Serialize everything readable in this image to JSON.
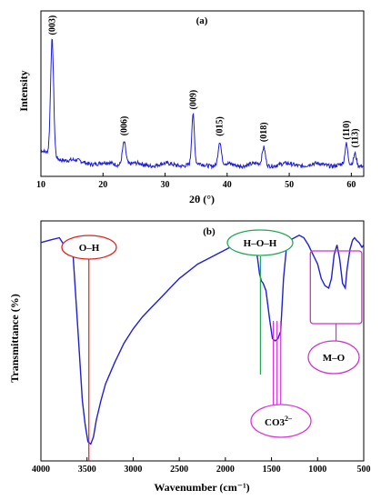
{
  "chart_data": [
    {
      "type": "line",
      "panel_label": "(a)",
      "xlabel": "2θ (°)",
      "ylabel": "Intensity",
      "xlim": [
        10,
        62
      ],
      "xticks": [
        10,
        20,
        30,
        40,
        50,
        60
      ],
      "grid": false,
      "legend": "none",
      "line_color": "#1f1fd6",
      "baseline": 0.12,
      "peaks": [
        {
          "label": "(003)",
          "x": 11.8,
          "y": 1.0,
          "width": 0.35
        },
        {
          "label": "(006)",
          "x": 23.4,
          "y": 0.2,
          "width": 0.4
        },
        {
          "label": "(009)",
          "x": 34.5,
          "y": 0.43,
          "width": 0.3
        },
        {
          "label": "(015)",
          "x": 38.8,
          "y": 0.2,
          "width": 0.35
        },
        {
          "label": "(018)",
          "x": 45.9,
          "y": 0.15,
          "width": 0.35
        },
        {
          "label": "(110)",
          "x": 59.2,
          "y": 0.17,
          "width": 0.3
        },
        {
          "label": "(113)",
          "x": 60.6,
          "y": 0.1,
          "width": 0.3
        }
      ]
    },
    {
      "type": "line",
      "panel_label": "(b)",
      "xlabel": "Wavenumber (cm⁻¹)",
      "ylabel": "Transmittance (%)",
      "xlim": [
        4000,
        500
      ],
      "xticks": [
        4000,
        3500,
        3000,
        2500,
        2000,
        1500,
        1000,
        500
      ],
      "grid": false,
      "legend": "none",
      "line_color": "#1f1fd6",
      "x": [
        4000,
        3900,
        3800,
        3750,
        3700,
        3650,
        3600,
        3550,
        3520,
        3490,
        3460,
        3430,
        3400,
        3350,
        3300,
        3200,
        3100,
        3000,
        2900,
        2800,
        2700,
        2600,
        2500,
        2400,
        2300,
        2200,
        2100,
        2000,
        1900,
        1800,
        1720,
        1680,
        1650,
        1630,
        1610,
        1590,
        1560,
        1520,
        1490,
        1460,
        1430,
        1400,
        1370,
        1340,
        1300,
        1250,
        1200,
        1150,
        1100,
        1050,
        1000,
        960,
        920,
        880,
        850,
        820,
        790,
        760,
        730,
        700,
        680,
        650,
        620,
        600,
        580,
        550,
        520,
        500
      ],
      "y": [
        0.91,
        0.92,
        0.93,
        0.9,
        0.91,
        0.85,
        0.55,
        0.25,
        0.15,
        0.08,
        0.07,
        0.1,
        0.17,
        0.25,
        0.32,
        0.41,
        0.49,
        0.55,
        0.6,
        0.64,
        0.68,
        0.72,
        0.76,
        0.79,
        0.82,
        0.84,
        0.86,
        0.88,
        0.9,
        0.92,
        0.93,
        0.91,
        0.84,
        0.78,
        0.75,
        0.74,
        0.71,
        0.59,
        0.51,
        0.5,
        0.51,
        0.54,
        0.76,
        0.88,
        0.92,
        0.93,
        0.94,
        0.93,
        0.9,
        0.86,
        0.82,
        0.76,
        0.73,
        0.72,
        0.76,
        0.86,
        0.9,
        0.84,
        0.74,
        0.72,
        0.8,
        0.88,
        0.92,
        0.93,
        0.92,
        0.91,
        0.89,
        0.9
      ],
      "annotations": [
        {
          "id": "oh",
          "label": "O–H",
          "x": 3480,
          "color": "#e02020",
          "shape": "ellipse"
        },
        {
          "id": "hoh",
          "label": "H–O–H",
          "x": 1620,
          "color": "#22aa55",
          "shape": "ellipse"
        },
        {
          "id": "co3",
          "label": "CO3",
          "superscript": "2–",
          "x": [
            1480,
            1440,
            1400
          ],
          "color": "#dd33dd",
          "shape": "ellipse"
        },
        {
          "id": "mo",
          "label": "M–O",
          "x_range": [
            1000,
            600
          ],
          "color": "#cc33cc",
          "shape": "box"
        }
      ]
    }
  ]
}
